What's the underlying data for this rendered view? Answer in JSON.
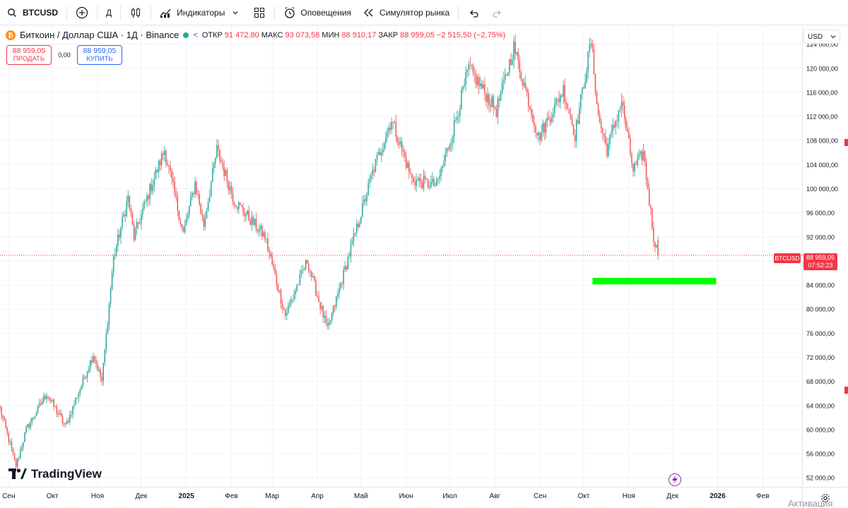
{
  "toolbar": {
    "symbol": "BTCUSD",
    "interval": "Д",
    "indicators_label": "Индикаторы",
    "alerts_label": "Оповещения",
    "replay_label": "Симулятор рынка"
  },
  "legend": {
    "title": "Биткоин / Доллар США · 1Д · Binance",
    "open_label": "ОТКР",
    "open": "91 472,80",
    "high_label": "МАКС",
    "high": "93 073,58",
    "low_label": "МИН",
    "low": "88 910,17",
    "close_label": "ЗАКР",
    "close": "88 959,05",
    "change": "−2 515,50 (−2,75%)"
  },
  "trade": {
    "sell_price": "88 959,05",
    "sell_label": "ПРОДАТЬ",
    "spread": "0,00",
    "buy_price": "88 959,05",
    "buy_label": "КУПИТЬ"
  },
  "currency_button": "USD",
  "last_price": {
    "symbol": "BTCUSD",
    "price": "88 959,05",
    "countdown": "07:52:23"
  },
  "watermark": "TradingView",
  "activation_text": "Активация",
  "colors": {
    "up": "#26a69a",
    "down": "#ef5350",
    "zone": "#00ff00",
    "last_price_line": "#f23645"
  },
  "chart_data": {
    "type": "candlestick",
    "title": "Биткоин / Доллар США · 1Д · Binance",
    "x_ticks": [
      "Сен",
      "Окт",
      "Ноя",
      "Дек",
      "2025",
      "Фев",
      "Мар",
      "Апр",
      "Май",
      "Июн",
      "Июл",
      "Авг",
      "Сен",
      "Окт",
      "Ноя",
      "Дек",
      "2026",
      "Фев"
    ],
    "y_ticks": [
      "52 000,00",
      "56 000,00",
      "60 000,00",
      "64 000,00",
      "68 000,00",
      "72 000,00",
      "76 000,00",
      "80 000,00",
      "84 000,00",
      "88 000,00",
      "92 000,00",
      "96 000,00",
      "100 000,00",
      "104 000,00",
      "108 000,00",
      "112 000,00",
      "116 000,00",
      "120 000,00",
      "124 000,00"
    ],
    "ylim": [
      50500,
      127000
    ],
    "xlim": [
      "2024-08-26",
      "2026-02-28"
    ],
    "close_path": [
      [
        "2024-08-26",
        63500
      ],
      [
        "2024-09-06",
        54000
      ],
      [
        "2024-09-13",
        60000
      ],
      [
        "2024-09-27",
        66000
      ],
      [
        "2024-10-10",
        60500
      ],
      [
        "2024-10-29",
        72500
      ],
      [
        "2024-11-04",
        68000
      ],
      [
        "2024-11-12",
        88500
      ],
      [
        "2024-11-22",
        98500
      ],
      [
        "2024-11-26",
        92000
      ],
      [
        "2024-12-05",
        98500
      ],
      [
        "2024-12-17",
        106500
      ],
      [
        "2024-12-30",
        92500
      ],
      [
        "2025-01-07",
        101000
      ],
      [
        "2025-01-13",
        94000
      ],
      [
        "2025-01-22",
        106500
      ],
      [
        "2025-02-03",
        98000
      ],
      [
        "2025-02-24",
        92000
      ],
      [
        "2025-03-10",
        79000
      ],
      [
        "2025-03-25",
        88000
      ],
      [
        "2025-04-08",
        76500
      ],
      [
        "2025-04-21",
        87500
      ],
      [
        "2025-05-10",
        103500
      ],
      [
        "2025-05-22",
        111500
      ],
      [
        "2025-06-05",
        101500
      ],
      [
        "2025-06-22",
        100500
      ],
      [
        "2025-07-03",
        109500
      ],
      [
        "2025-07-14",
        120000
      ],
      [
        "2025-08-02",
        113000
      ],
      [
        "2025-08-14",
        123500
      ],
      [
        "2025-08-31",
        108500
      ],
      [
        "2025-09-17",
        116500
      ],
      [
        "2025-09-25",
        109000
      ],
      [
        "2025-10-06",
        124500
      ],
      [
        "2025-10-11",
        112000
      ],
      [
        "2025-10-17",
        106500
      ],
      [
        "2025-10-27",
        114500
      ],
      [
        "2025-11-04",
        103000
      ],
      [
        "2025-11-11",
        106000
      ],
      [
        "2025-11-18",
        92000
      ],
      [
        "2025-11-21",
        88959
      ]
    ],
    "last_price": 88959.05,
    "zone": {
      "y_from": 84100,
      "y_to": 85200,
      "x_from": "2025-10-07",
      "x_to": "2025-12-31"
    },
    "grid": true
  }
}
